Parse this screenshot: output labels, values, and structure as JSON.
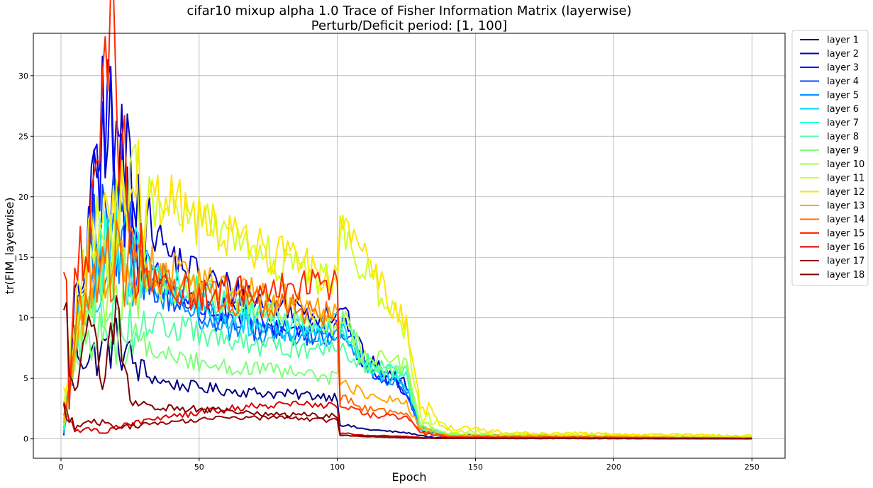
{
  "chart_data": {
    "type": "line",
    "title": "cifar10 mixup alpha 1.0 Trace of Fisher Information Matrix (layerwise)",
    "subtitle": "Perturb/Deficit period: [1, 100]",
    "xlabel": "Epoch",
    "ylabel": "tr(FIM_layerwise)",
    "xlim": [
      -10,
      262
    ],
    "ylim": [
      -1.6,
      33.5
    ],
    "xticks": [
      0,
      50,
      100,
      150,
      200,
      250
    ],
    "yticks": [
      0,
      5,
      10,
      15,
      20,
      25,
      30
    ],
    "grid": true,
    "legend_position": "outside-right",
    "series": [
      {
        "name": "layer 1",
        "color": "#00007f",
        "key_points": [
          [
            1,
            0.8
          ],
          [
            5,
            8.0
          ],
          [
            10,
            6.5
          ],
          [
            20,
            8.0
          ],
          [
            30,
            5.3
          ],
          [
            40,
            4.5
          ],
          [
            60,
            4.0
          ],
          [
            80,
            3.7
          ],
          [
            100,
            3.5
          ],
          [
            101,
            1.2
          ],
          [
            110,
            0.8
          ],
          [
            125,
            0.5
          ],
          [
            135,
            0.1
          ],
          [
            250,
            0.02
          ]
        ]
      },
      {
        "name": "layer 2",
        "color": "#0000c4",
        "key_points": [
          [
            1,
            0.4
          ],
          [
            5,
            10.0
          ],
          [
            10,
            15.5
          ],
          [
            16,
            28.8
          ],
          [
            20,
            21.0
          ],
          [
            25,
            23.5
          ],
          [
            30,
            18.5
          ],
          [
            40,
            15.0
          ],
          [
            50,
            13.5
          ],
          [
            60,
            12.5
          ],
          [
            70,
            11.5
          ],
          [
            80,
            11.0
          ],
          [
            90,
            10.5
          ],
          [
            100,
            10.5
          ],
          [
            101,
            11.5
          ],
          [
            110,
            6.5
          ],
          [
            125,
            4.5
          ],
          [
            130,
            1.0
          ],
          [
            140,
            0.3
          ],
          [
            250,
            0.05
          ]
        ]
      },
      {
        "name": "layer 3",
        "color": "#0008ff",
        "key_points": [
          [
            1,
            0.3
          ],
          [
            5,
            9.0
          ],
          [
            10,
            17.0
          ],
          [
            18,
            26.0
          ],
          [
            25,
            17.5
          ],
          [
            35,
            13.5
          ],
          [
            50,
            11.0
          ],
          [
            65,
            10.0
          ],
          [
            80,
            9.2
          ],
          [
            100,
            8.8
          ],
          [
            101,
            9.8
          ],
          [
            110,
            6.0
          ],
          [
            125,
            4.0
          ],
          [
            130,
            0.8
          ],
          [
            140,
            0.25
          ],
          [
            250,
            0.05
          ]
        ]
      },
      {
        "name": "layer 4",
        "color": "#004cff",
        "key_points": [
          [
            1,
            0.4
          ],
          [
            5,
            8.5
          ],
          [
            10,
            15.5
          ],
          [
            20,
            17.5
          ],
          [
            30,
            13.5
          ],
          [
            45,
            11.0
          ],
          [
            60,
            9.5
          ],
          [
            80,
            8.8
          ],
          [
            100,
            8.5
          ],
          [
            101,
            9.5
          ],
          [
            110,
            6.0
          ],
          [
            125,
            4.0
          ],
          [
            130,
            0.8
          ],
          [
            140,
            0.25
          ],
          [
            250,
            0.05
          ]
        ]
      },
      {
        "name": "layer 5",
        "color": "#0090ff",
        "key_points": [
          [
            1,
            0.5
          ],
          [
            5,
            8.0
          ],
          [
            10,
            14.0
          ],
          [
            20,
            17.0
          ],
          [
            30,
            13.0
          ],
          [
            45,
            10.5
          ],
          [
            60,
            9.2
          ],
          [
            80,
            8.5
          ],
          [
            100,
            8.2
          ],
          [
            101,
            9.0
          ],
          [
            110,
            5.8
          ],
          [
            125,
            4.2
          ],
          [
            130,
            0.8
          ],
          [
            140,
            0.25
          ],
          [
            250,
            0.05
          ]
        ]
      },
      {
        "name": "layer 6",
        "color": "#00d4ff",
        "key_points": [
          [
            1,
            0.5
          ],
          [
            5,
            7.5
          ],
          [
            10,
            13.5
          ],
          [
            20,
            16.0
          ],
          [
            30,
            13.5
          ],
          [
            45,
            11.5
          ],
          [
            60,
            10.0
          ],
          [
            80,
            9.0
          ],
          [
            100,
            8.5
          ],
          [
            101,
            9.2
          ],
          [
            110,
            6.0
          ],
          [
            125,
            4.5
          ],
          [
            130,
            0.9
          ],
          [
            140,
            0.3
          ],
          [
            250,
            0.05
          ]
        ]
      },
      {
        "name": "layer 7",
        "color": "#29ffce",
        "key_points": [
          [
            1,
            0.6
          ],
          [
            5,
            7.0
          ],
          [
            10,
            12.5
          ],
          [
            20,
            17.0
          ],
          [
            30,
            14.0
          ],
          [
            45,
            12.5
          ],
          [
            60,
            11.0
          ],
          [
            80,
            10.0
          ],
          [
            100,
            9.5
          ],
          [
            101,
            10.0
          ],
          [
            110,
            6.5
          ],
          [
            125,
            5.0
          ],
          [
            130,
            1.0
          ],
          [
            140,
            0.3
          ],
          [
            250,
            0.05
          ]
        ]
      },
      {
        "name": "layer 8",
        "color": "#54ffa2",
        "key_points": [
          [
            1,
            0.8
          ],
          [
            5,
            6.5
          ],
          [
            10,
            11.0
          ],
          [
            20,
            10.0
          ],
          [
            30,
            9.5
          ],
          [
            45,
            9.0
          ],
          [
            60,
            8.0
          ],
          [
            80,
            7.5
          ],
          [
            100,
            7.5
          ],
          [
            101,
            8.0
          ],
          [
            110,
            6.0
          ],
          [
            125,
            5.5
          ],
          [
            130,
            1.0
          ],
          [
            140,
            0.3
          ],
          [
            250,
            0.05
          ]
        ]
      },
      {
        "name": "layer 9",
        "color": "#7dff7a",
        "key_points": [
          [
            1,
            1.0
          ],
          [
            5,
            6.0
          ],
          [
            10,
            9.0
          ],
          [
            20,
            8.5
          ],
          [
            30,
            7.5
          ],
          [
            45,
            6.5
          ],
          [
            60,
            6.0
          ],
          [
            80,
            5.5
          ],
          [
            100,
            5.0
          ],
          [
            101,
            10.0
          ],
          [
            110,
            6.0
          ],
          [
            125,
            5.5
          ],
          [
            130,
            1.0
          ],
          [
            140,
            0.35
          ],
          [
            250,
            0.05
          ]
        ]
      },
      {
        "name": "layer 10",
        "color": "#a3ff54",
        "key_points": [
          [
            1,
            2.0
          ],
          [
            5,
            7.5
          ],
          [
            10,
            11.0
          ],
          [
            20,
            13.5
          ],
          [
            30,
            13.0
          ],
          [
            45,
            12.5
          ],
          [
            60,
            11.5
          ],
          [
            80,
            10.5
          ],
          [
            100,
            9.5
          ],
          [
            101,
            10.5
          ],
          [
            110,
            7.0
          ],
          [
            125,
            6.0
          ],
          [
            130,
            1.2
          ],
          [
            140,
            0.4
          ],
          [
            250,
            0.1
          ]
        ]
      },
      {
        "name": "layer 11",
        "color": "#ceff29",
        "key_points": [
          [
            1,
            3.0
          ],
          [
            5,
            9.0
          ],
          [
            10,
            14.5
          ],
          [
            20,
            18.5
          ],
          [
            30,
            19.5
          ],
          [
            40,
            19.0
          ],
          [
            50,
            18.0
          ],
          [
            60,
            16.5
          ],
          [
            70,
            15.5
          ],
          [
            80,
            14.5
          ],
          [
            90,
            13.5
          ],
          [
            100,
            13.0
          ],
          [
            101,
            18.5
          ],
          [
            105,
            16.0
          ],
          [
            110,
            14.0
          ],
          [
            120,
            10.5
          ],
          [
            125,
            9.0
          ],
          [
            130,
            2.0
          ],
          [
            140,
            0.8
          ],
          [
            160,
            0.4
          ],
          [
            250,
            0.2
          ]
        ]
      },
      {
        "name": "layer 12",
        "color": "#ffe600",
        "key_points": [
          [
            1,
            3.5
          ],
          [
            5,
            9.5
          ],
          [
            10,
            15.0
          ],
          [
            20,
            19.0
          ],
          [
            30,
            20.0
          ],
          [
            40,
            19.5
          ],
          [
            50,
            18.5
          ],
          [
            60,
            17.0
          ],
          [
            70,
            16.0
          ],
          [
            80,
            15.0
          ],
          [
            90,
            14.0
          ],
          [
            100,
            13.5
          ],
          [
            101,
            20.5
          ],
          [
            105,
            17.0
          ],
          [
            110,
            15.0
          ],
          [
            120,
            11.0
          ],
          [
            125,
            9.5
          ],
          [
            130,
            2.8
          ],
          [
            140,
            1.0
          ],
          [
            160,
            0.5
          ],
          [
            250,
            0.25
          ]
        ]
      },
      {
        "name": "layer 13",
        "color": "#ffa700",
        "key_points": [
          [
            1,
            1.5
          ],
          [
            5,
            7.0
          ],
          [
            10,
            13.0
          ],
          [
            20,
            15.0
          ],
          [
            30,
            14.5
          ],
          [
            45,
            13.5
          ],
          [
            60,
            12.5
          ],
          [
            80,
            11.5
          ],
          [
            100,
            10.0
          ],
          [
            101,
            5.0
          ],
          [
            110,
            3.5
          ],
          [
            125,
            3.0
          ],
          [
            130,
            0.8
          ],
          [
            140,
            0.3
          ],
          [
            250,
            0.1
          ]
        ]
      },
      {
        "name": "layer 14",
        "color": "#ff6800",
        "key_points": [
          [
            1,
            1.8
          ],
          [
            5,
            7.5
          ],
          [
            10,
            13.5
          ],
          [
            20,
            14.5
          ],
          [
            30,
            13.5
          ],
          [
            45,
            12.5
          ],
          [
            60,
            11.5
          ],
          [
            80,
            11.0
          ],
          [
            100,
            10.0
          ],
          [
            101,
            3.5
          ],
          [
            110,
            2.5
          ],
          [
            125,
            2.0
          ],
          [
            130,
            0.6
          ],
          [
            140,
            0.2
          ],
          [
            250,
            0.05
          ]
        ]
      },
      {
        "name": "layer 15",
        "color": "#ff2900",
        "key_points": [
          [
            1,
            18.9
          ],
          [
            3,
            3.0
          ],
          [
            5,
            12.5
          ],
          [
            10,
            16.0
          ],
          [
            14,
            24.3
          ],
          [
            20,
            31.8
          ],
          [
            25,
            15.0
          ],
          [
            35,
            12.5
          ],
          [
            50,
            12.0
          ],
          [
            60,
            12.0
          ],
          [
            75,
            12.5
          ],
          [
            85,
            13.0
          ],
          [
            100,
            12.5
          ],
          [
            101,
            3.0
          ],
          [
            110,
            2.0
          ],
          [
            125,
            1.8
          ],
          [
            130,
            0.5
          ],
          [
            140,
            0.15
          ],
          [
            250,
            0.05
          ]
        ]
      },
      {
        "name": "layer 16",
        "color": "#da0000",
        "key_points": [
          [
            1,
            3.2
          ],
          [
            5,
            0.5
          ],
          [
            10,
            1.0
          ],
          [
            15,
            0.4
          ],
          [
            20,
            1.0
          ],
          [
            30,
            1.5
          ],
          [
            45,
            2.0
          ],
          [
            60,
            2.5
          ],
          [
            80,
            2.8
          ],
          [
            100,
            2.8
          ],
          [
            101,
            0.5
          ],
          [
            110,
            0.3
          ],
          [
            125,
            0.2
          ],
          [
            135,
            0.05
          ],
          [
            250,
            0.02
          ]
        ]
      },
      {
        "name": "layer 17",
        "color": "#930000",
        "key_points": [
          [
            1,
            2.5
          ],
          [
            5,
            1.0
          ],
          [
            10,
            1.5
          ],
          [
            20,
            1.0
          ],
          [
            30,
            1.2
          ],
          [
            45,
            1.5
          ],
          [
            60,
            1.7
          ],
          [
            80,
            1.8
          ],
          [
            100,
            1.5
          ],
          [
            101,
            0.3
          ],
          [
            110,
            0.2
          ],
          [
            125,
            0.1
          ],
          [
            135,
            0.05
          ],
          [
            250,
            0.02
          ]
        ]
      },
      {
        "name": "layer 18",
        "color": "#7f0000",
        "key_points": [
          [
            1,
            13.2
          ],
          [
            3,
            7.0
          ],
          [
            5,
            5.0
          ],
          [
            10,
            9.5
          ],
          [
            15,
            5.5
          ],
          [
            20,
            12.0
          ],
          [
            25,
            2.8
          ],
          [
            30,
            2.6
          ],
          [
            45,
            2.5
          ],
          [
            60,
            2.3
          ],
          [
            80,
            2.0
          ],
          [
            100,
            1.9
          ],
          [
            101,
            0.3
          ],
          [
            110,
            0.2
          ],
          [
            125,
            0.1
          ],
          [
            135,
            0.05
          ],
          [
            250,
            0.02
          ]
        ]
      }
    ]
  }
}
